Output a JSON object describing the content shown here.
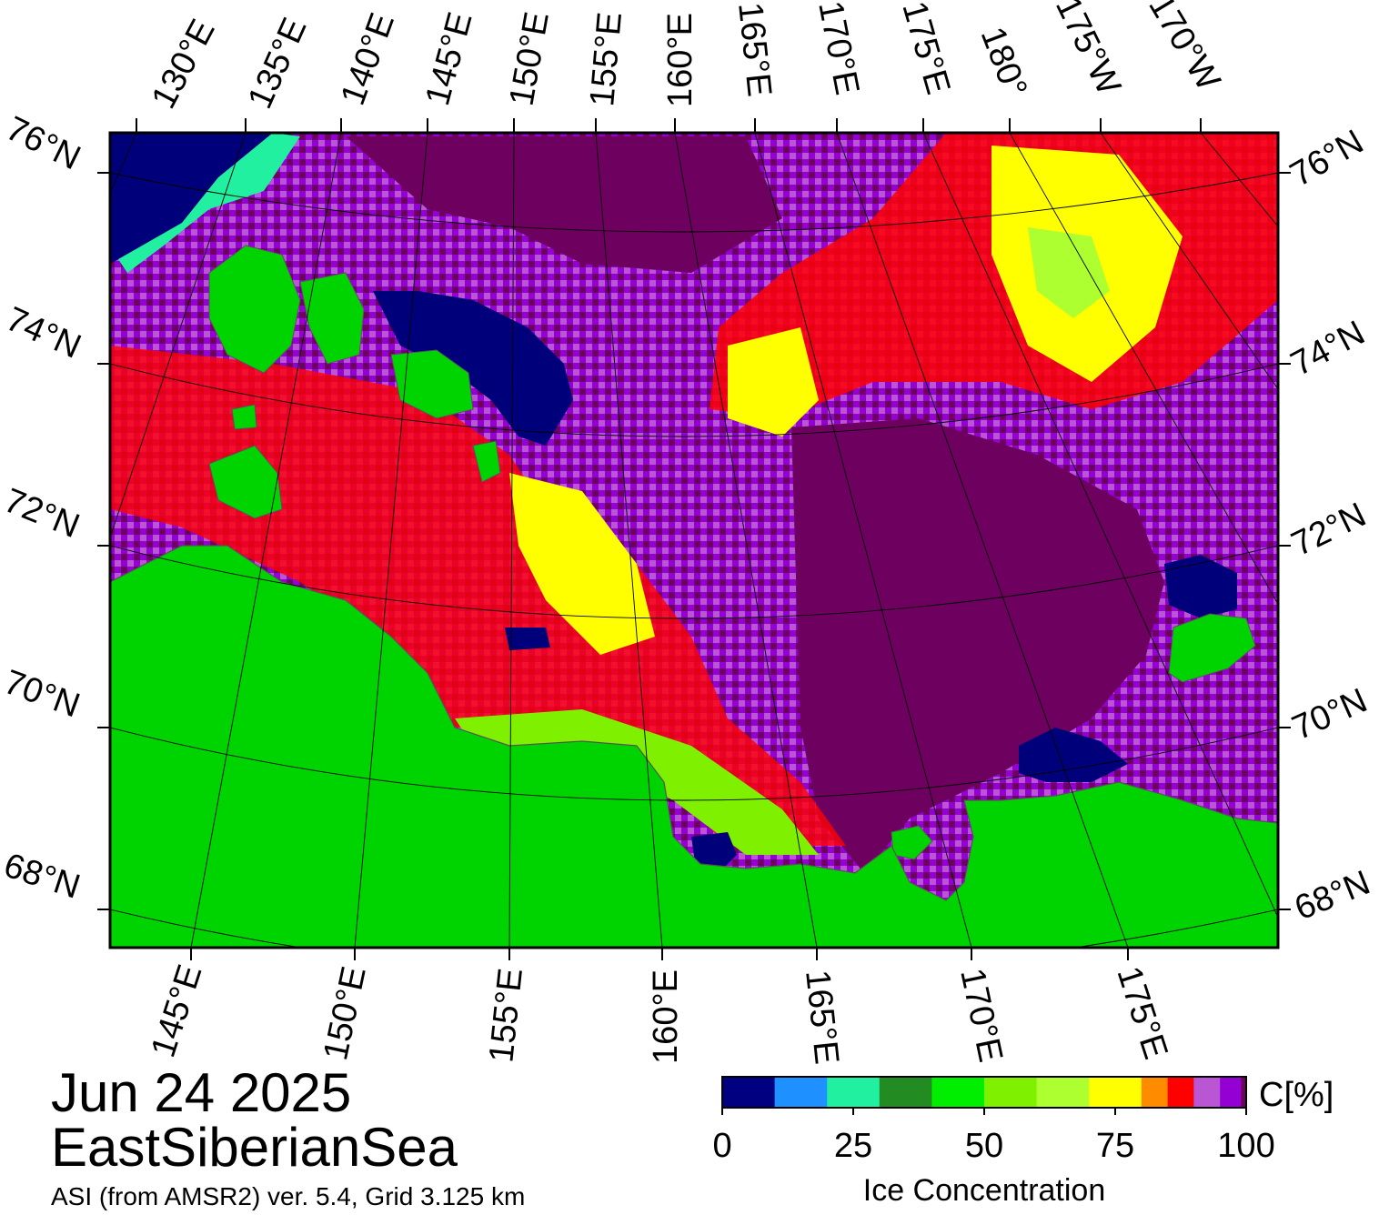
{
  "title": {
    "date": "Jun 24 2025",
    "region": "EastSiberianSea",
    "source": "ASI (from AMSR2) ver. 5.4,  Grid 3.125 km"
  },
  "map": {
    "top_lon_labels": [
      "130°E",
      "135°E",
      "140°E",
      "145°E",
      "150°E",
      "155°E",
      "160°E",
      "165°E",
      "170°E",
      "175°E",
      "180°",
      "175°W",
      "170°W"
    ],
    "bottom_lon_labels": [
      "145°E",
      "150°E",
      "155°E",
      "160°E",
      "165°E",
      "170°E",
      "175°E"
    ],
    "left_lat_labels": [
      "76°N",
      "74°N",
      "72°N",
      "70°N",
      "68°N"
    ],
    "right_lat_labels": [
      "76°N",
      "74°N",
      "72°N",
      "70°N",
      "68°N"
    ],
    "colors": {
      "land": "#00d400",
      "open_water": "#00007a",
      "high_ice": "#6e0060",
      "frame": "#000000"
    }
  },
  "colorbar": {
    "unit": "C[%]",
    "title": "Ice Concentration",
    "ticks": [
      "0",
      "25",
      "50",
      "75",
      "100"
    ],
    "bins": [
      {
        "from": 0,
        "to": 10,
        "color": "#000080"
      },
      {
        "from": 10,
        "to": 20,
        "color": "#1e90ff"
      },
      {
        "from": 20,
        "to": 30,
        "color": "#20f0a0"
      },
      {
        "from": 30,
        "to": 40,
        "color": "#228b22"
      },
      {
        "from": 40,
        "to": 50,
        "color": "#00ee00"
      },
      {
        "from": 50,
        "to": 60,
        "color": "#7ff000"
      },
      {
        "from": 60,
        "to": 70,
        "color": "#adff2f"
      },
      {
        "from": 70,
        "to": 80,
        "color": "#ffff00"
      },
      {
        "from": 80,
        "to": 85,
        "color": "#ff8c00"
      },
      {
        "from": 85,
        "to": 90,
        "color": "#ff0000"
      },
      {
        "from": 90,
        "to": 95,
        "color": "#ba55d3"
      },
      {
        "from": 95,
        "to": 99,
        "color": "#9400d3"
      },
      {
        "from": 99,
        "to": 100,
        "color": "#6e0060"
      }
    ]
  }
}
